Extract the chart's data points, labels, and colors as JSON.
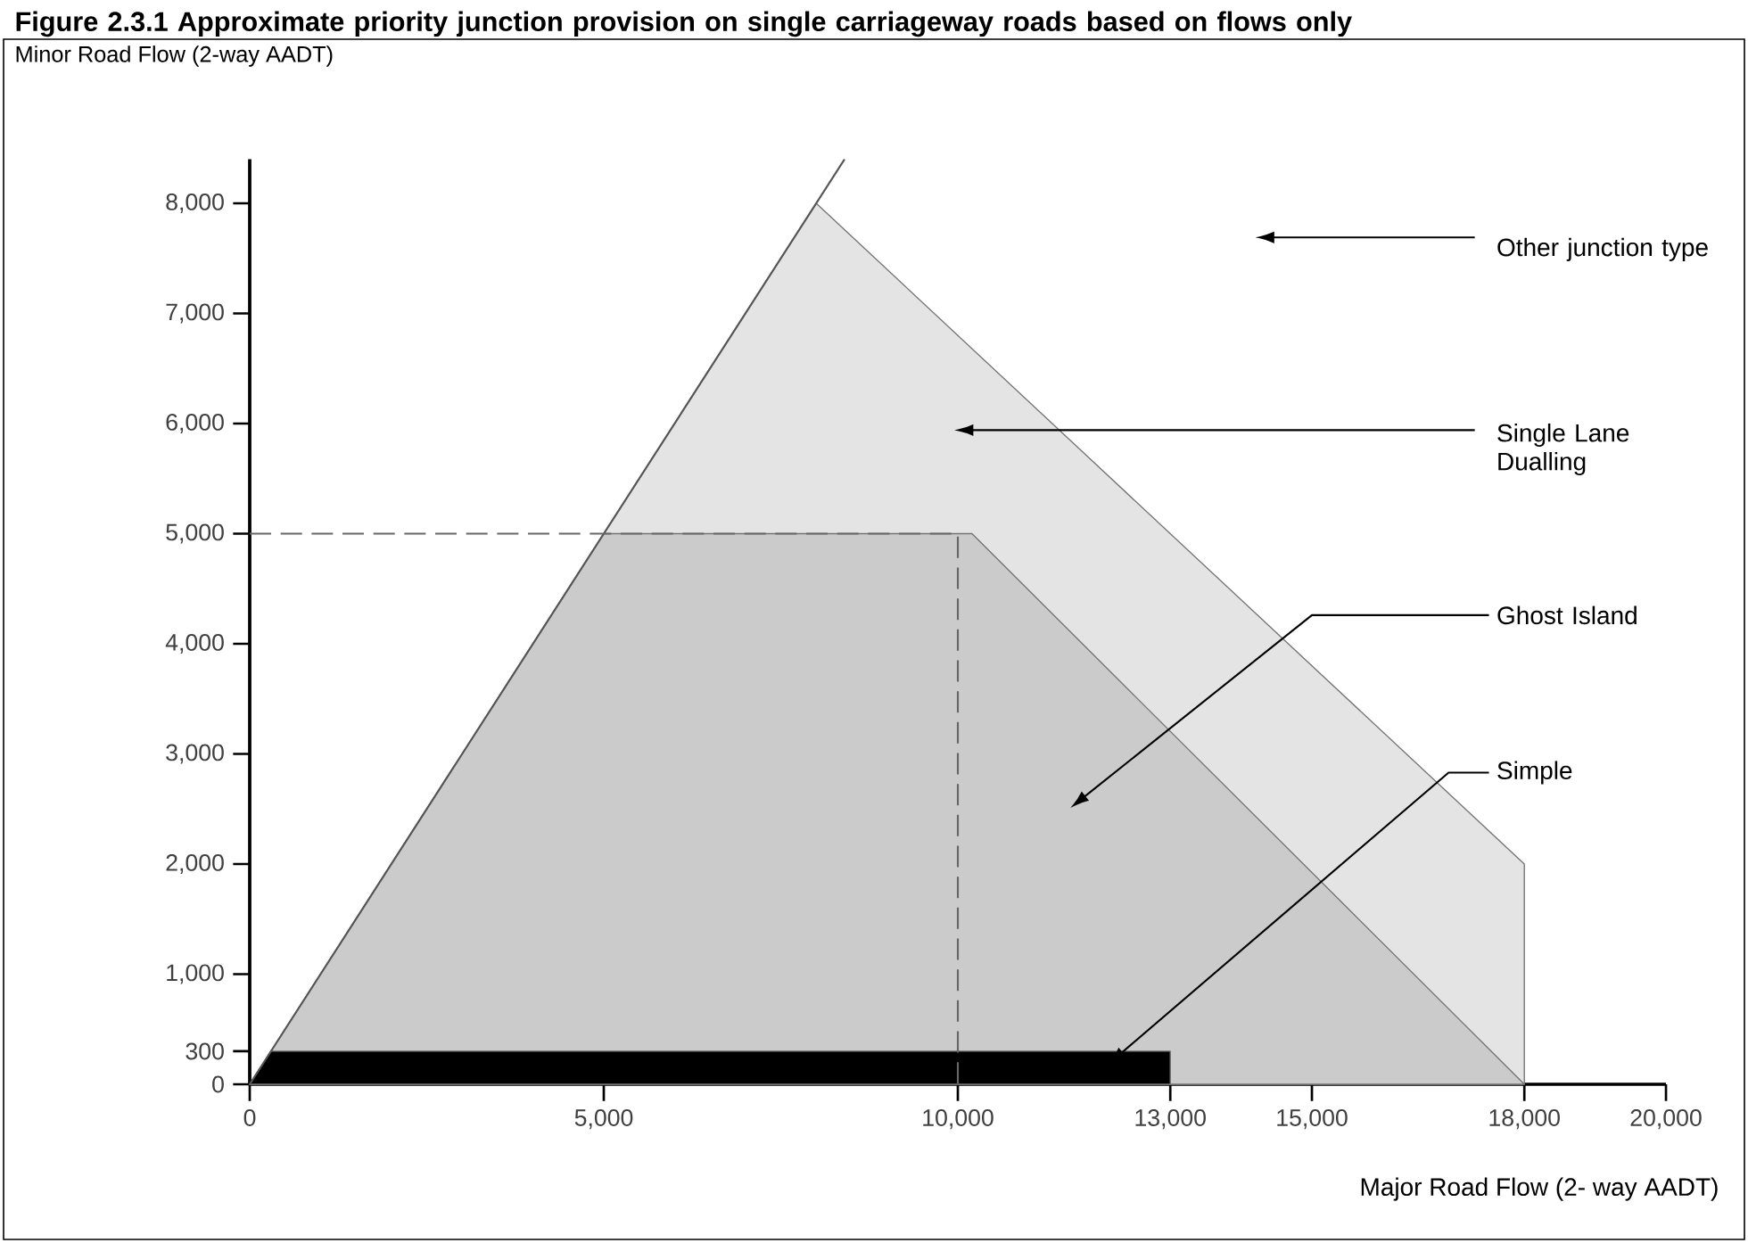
{
  "chart_data": {
    "type": "area",
    "title": "Figure 2.3.1 Approximate priority junction provision on single carriageway roads based on flows only",
    "xlabel": "Major Road Flow (2- way AADT)",
    "ylabel": "Minor Road Flow (2-way AADT)",
    "xlim": [
      0,
      20000
    ],
    "ylim": [
      0,
      8400
    ],
    "xticks": [
      0,
      {
        "value": 5000,
        "label": "5,000"
      },
      {
        "value": 10000,
        "label": "10,000"
      },
      {
        "value": 13000,
        "label": "13,000"
      },
      {
        "value": 15000,
        "label": "15,000"
      },
      {
        "value": 18000,
        "label": "18,000"
      },
      {
        "value": 20000,
        "label": "20,000"
      }
    ],
    "yticks": [
      0,
      300,
      {
        "value": 1000,
        "label": "1,000"
      },
      {
        "value": 2000,
        "label": "2,000"
      },
      {
        "value": 3000,
        "label": "3,000"
      },
      {
        "value": 4000,
        "label": "4,000"
      },
      {
        "value": 5000,
        "label": "5,000"
      },
      {
        "value": 6000,
        "label": "6,000"
      },
      {
        "value": 7000,
        "label": "7,000"
      },
      {
        "value": 8000,
        "label": "8,000"
      }
    ],
    "series": [
      {
        "color": "#e4e4e4",
        "x": [
          0,
          8000,
          18000,
          18000
        ],
        "values": [
          0,
          8000,
          2000,
          0
        ]
      },
      {
        "color": "#cbcbcb",
        "x": [
          0,
          5000,
          10200,
          18000
        ],
        "values": [
          0,
          5000,
          5000,
          0
        ]
      },
      {
        "color": "#000000",
        "x": [
          0,
          300,
          13000,
          13000
        ],
        "values": [
          0,
          300,
          300,
          0
        ]
      },
      {
        "type": "line",
        "color": "#555555",
        "line_style": "solid",
        "x": [
          0,
          8400
        ],
        "values": [
          0,
          8400
        ]
      },
      {
        "type": "line",
        "color": "#666666",
        "line_style": "dashed",
        "x": [
          0,
          10000,
          10000
        ],
        "values": [
          5000,
          5000,
          0
        ]
      }
    ],
    "annotations": [
      "Other junction type",
      "Single Lane Dualling",
      "Ghost Island",
      "Simple"
    ]
  }
}
